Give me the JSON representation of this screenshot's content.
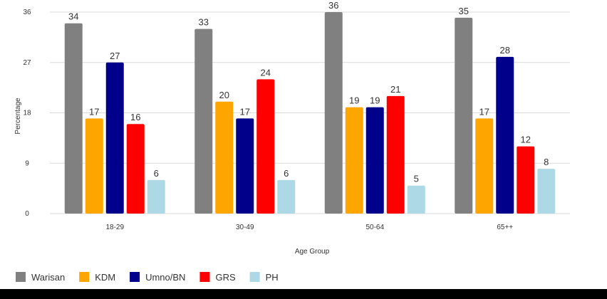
{
  "chart_data": {
    "type": "bar",
    "title": "",
    "xlabel": "Age Group",
    "ylabel": "Percentage",
    "categories": [
      "18-29",
      "30-49",
      "50-64",
      "65++"
    ],
    "ylim": [
      0,
      36
    ],
    "yticks": [
      0,
      9,
      18,
      27,
      36
    ],
    "grid": true,
    "legend_position": "bottom-left",
    "series": [
      {
        "name": "Warisan",
        "color": "#808080",
        "values": [
          34,
          33,
          36,
          35
        ]
      },
      {
        "name": "KDM",
        "color": "#FFA500",
        "values": [
          17,
          20,
          19,
          17
        ]
      },
      {
        "name": "Umno/BN",
        "color": "#00008B",
        "values": [
          27,
          17,
          19,
          28
        ]
      },
      {
        "name": "GRS",
        "color": "#FF0000",
        "values": [
          16,
          24,
          21,
          12
        ]
      },
      {
        "name": "PH",
        "color": "#ADD8E6",
        "values": [
          6,
          6,
          5,
          8
        ]
      }
    ]
  }
}
